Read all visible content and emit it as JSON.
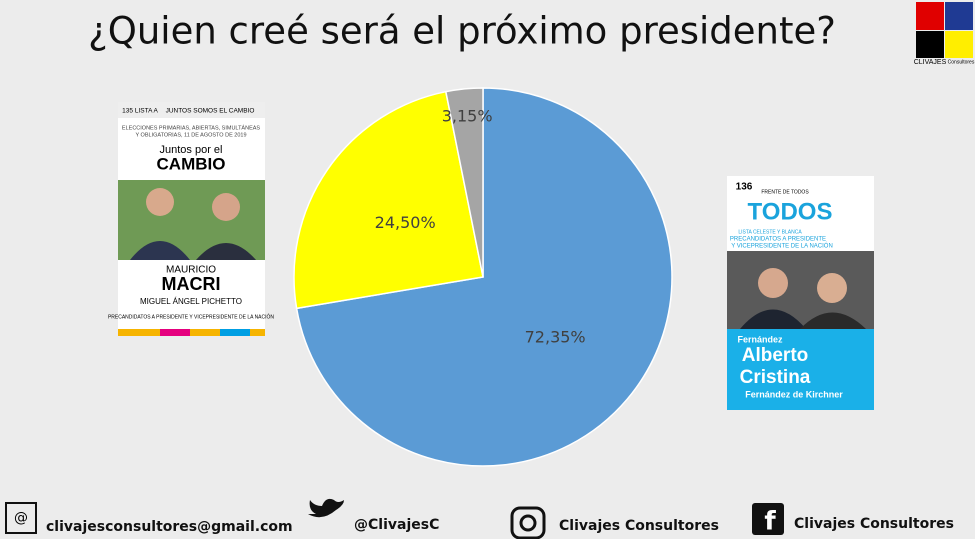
{
  "chart_data": {
    "type": "pie",
    "title": "¿Quien creé será el próximo presidente?",
    "values": [
      72.35,
      24.5,
      3.15
    ],
    "value_labels": [
      "72,35%",
      "24,50%",
      "3,15%"
    ],
    "colors": [
      "#5b9bd5",
      "#ffff00",
      "#a5a5a5"
    ]
  },
  "logo": {
    "name": "CLIVAJES",
    "sub": "Consultores"
  },
  "ballot_left": {
    "number": "135 LISTA A",
    "party_line": "JUNTOS SOMOS EL CAMBIO",
    "election_1": "ELECCIONES PRIMARIAS, ABIERTAS, SIMULTÁNEAS",
    "election_2": "Y OBLIGATORIAS, 11 DE AGOSTO DE 2019",
    "party_1": "Juntos por el",
    "party_2": "CAMBIO",
    "first_name": "MAURICIO",
    "last_name": "MACRI",
    "vice": "MIGUEL ÁNGEL PICHETTO",
    "role": "PRECANDIDATOS A PRESIDENTE Y VICEPRESIDENTE DE LA NACIÓN"
  },
  "ballot_right": {
    "number": "136",
    "front": "FRENTE DE TODOS",
    "party": "TODOS",
    "list": "LISTA CELESTE Y BLANCA",
    "role_1": "PRECANDIDATOS A PRESIDENTE",
    "role_2": "Y VICEPRESIDENTE DE LA NACIÓN",
    "surname_1": "Fernández",
    "name_1": "Alberto",
    "name_2": "Cristina",
    "surname_2": "Fernández de Kirchner"
  },
  "footer": {
    "email": "clivajesconsultores@gmail.com",
    "twitter": "@ClivajesC",
    "instagram": "Clivajes Consultores",
    "facebook": "Clivajes Consultores"
  }
}
